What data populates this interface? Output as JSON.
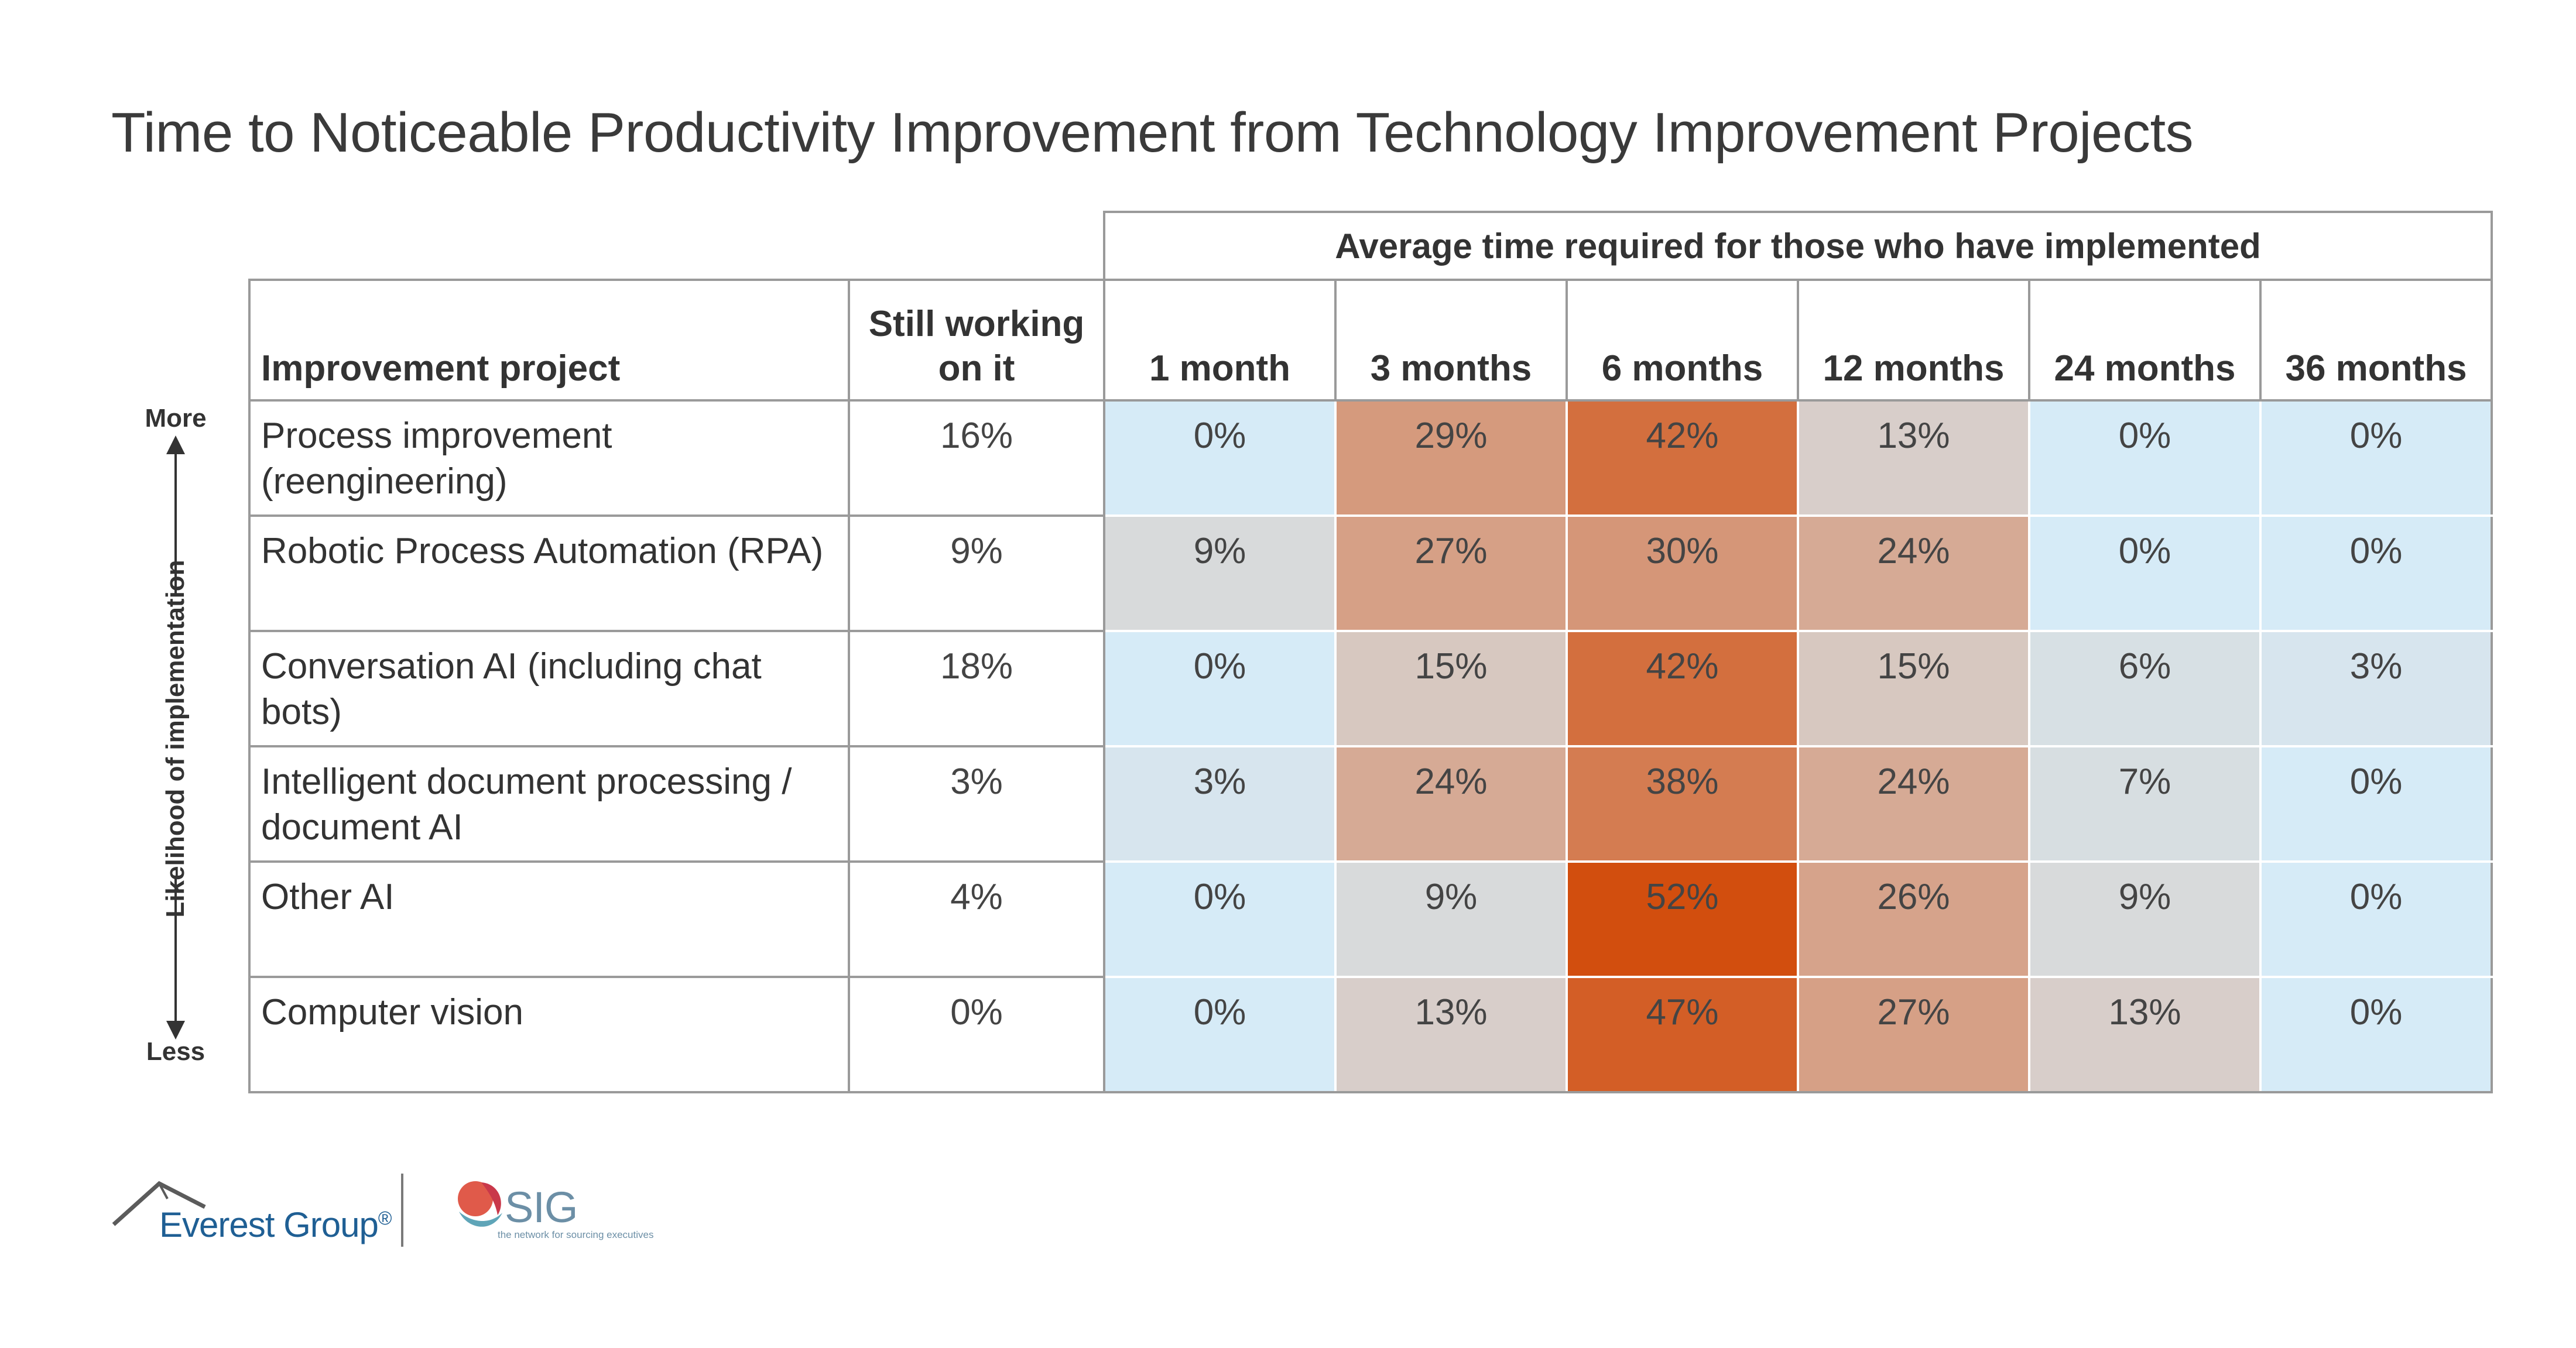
{
  "chart_data": {
    "type": "heatmap",
    "title": "Time to Noticeable Productivity Improvement from Technology Improvement Projects",
    "group_header": "Average time required for those who have implemented",
    "row_header": "Improvement project",
    "still_header": "Still working on it",
    "columns": [
      "1 month",
      "3 months",
      "6 months",
      "12 months",
      "24 months",
      "36 months"
    ],
    "rows": [
      {
        "project": "Process improvement (reengineering)",
        "still": "16%",
        "values": [
          0,
          29,
          42,
          13,
          0,
          0
        ]
      },
      {
        "project": "Robotic Process Automation (RPA)",
        "still": "9%",
        "values": [
          9,
          27,
          30,
          24,
          0,
          0
        ]
      },
      {
        "project": "Conversation AI (including chat bots)",
        "still": "18%",
        "values": [
          0,
          15,
          42,
          15,
          6,
          3
        ]
      },
      {
        "project": "Intelligent document processing / document AI",
        "still": "3%",
        "values": [
          3,
          24,
          38,
          24,
          7,
          0
        ]
      },
      {
        "project": "Other AI",
        "still": "4%",
        "values": [
          0,
          9,
          52,
          26,
          9,
          0
        ]
      },
      {
        "project": "Computer vision",
        "still": "0%",
        "values": [
          0,
          13,
          47,
          27,
          13,
          0
        ]
      }
    ],
    "value_suffix": "%",
    "y_axis": {
      "label": "Likelihood of implementation",
      "top": "More",
      "bottom": "Less"
    },
    "colors": {
      "low": "#d6ebf7",
      "mid": "#d8d8d8",
      "high": "#d24e0e"
    }
  },
  "footer": {
    "everest": "Everest Group",
    "everest_mark": "®",
    "sig": "SIG",
    "sig_tagline": "the network for sourcing executives"
  }
}
